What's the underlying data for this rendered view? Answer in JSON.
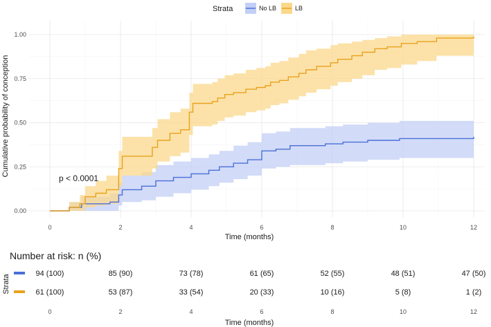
{
  "chart_data": {
    "type": "line",
    "subtype": "kaplan-meier-cumulative-incidence",
    "title": "",
    "xlabel": "Time (months)",
    "ylabel": "Cumulative probability of conception",
    "xlim": [
      0,
      12
    ],
    "ylim": [
      0,
      1
    ],
    "x_ticks": [
      0,
      2,
      4,
      6,
      8,
      10,
      12
    ],
    "y_ticks": [
      "0.00",
      "0.25",
      "0.50",
      "0.75",
      "1.00"
    ],
    "grid": true,
    "legend": {
      "title": "Strata",
      "position": "top",
      "entries": [
        "No LB",
        "LB"
      ]
    },
    "annotation": "p < 0.0001",
    "series": [
      {
        "name": "No LB",
        "color": "#4a6fd8",
        "fill": "#c3cff5",
        "steps": [
          [
            0,
            0
          ],
          [
            0.55,
            0.02
          ],
          [
            0.9,
            0.04
          ],
          [
            1.7,
            0.05
          ],
          [
            1.95,
            0.09
          ],
          [
            2.05,
            0.12
          ],
          [
            2.6,
            0.14
          ],
          [
            3.0,
            0.17
          ],
          [
            3.5,
            0.19
          ],
          [
            4.0,
            0.21
          ],
          [
            4.5,
            0.23
          ],
          [
            4.8,
            0.25
          ],
          [
            5.2,
            0.27
          ],
          [
            5.6,
            0.29
          ],
          [
            6.0,
            0.34
          ],
          [
            6.4,
            0.35
          ],
          [
            6.8,
            0.37
          ],
          [
            7.8,
            0.38
          ],
          [
            8.3,
            0.39
          ],
          [
            9.0,
            0.4
          ],
          [
            9.9,
            0.41
          ],
          [
            12.0,
            0.42
          ]
        ],
        "lower": [
          [
            0,
            0
          ],
          [
            0.55,
            0.0
          ],
          [
            0.9,
            0.0
          ],
          [
            1.7,
            0.0
          ],
          [
            1.95,
            0.03
          ],
          [
            2.05,
            0.05
          ],
          [
            2.6,
            0.06
          ],
          [
            3.0,
            0.08
          ],
          [
            3.5,
            0.1
          ],
          [
            4.0,
            0.12
          ],
          [
            4.5,
            0.14
          ],
          [
            4.8,
            0.16
          ],
          [
            5.2,
            0.18
          ],
          [
            5.6,
            0.2
          ],
          [
            6.0,
            0.24
          ],
          [
            6.4,
            0.25
          ],
          [
            6.8,
            0.26
          ],
          [
            7.8,
            0.27
          ],
          [
            8.3,
            0.28
          ],
          [
            9.0,
            0.29
          ],
          [
            9.9,
            0.3
          ],
          [
            12.0,
            0.31
          ]
        ],
        "upper": [
          [
            0,
            0
          ],
          [
            0.55,
            0.05
          ],
          [
            0.9,
            0.08
          ],
          [
            1.7,
            0.1
          ],
          [
            1.95,
            0.16
          ],
          [
            2.05,
            0.2
          ],
          [
            2.6,
            0.22
          ],
          [
            3.0,
            0.26
          ],
          [
            3.5,
            0.28
          ],
          [
            4.0,
            0.3
          ],
          [
            4.5,
            0.32
          ],
          [
            4.8,
            0.34
          ],
          [
            5.2,
            0.37
          ],
          [
            5.6,
            0.39
          ],
          [
            6.0,
            0.44
          ],
          [
            6.4,
            0.45
          ],
          [
            6.8,
            0.47
          ],
          [
            7.8,
            0.48
          ],
          [
            8.3,
            0.49
          ],
          [
            9.0,
            0.5
          ],
          [
            9.9,
            0.51
          ],
          [
            12.0,
            0.52
          ]
        ]
      },
      {
        "name": "LB",
        "color": "#e8a21c",
        "fill": "#fbd88c",
        "steps": [
          [
            0,
            0
          ],
          [
            0.55,
            0.02
          ],
          [
            0.85,
            0.04
          ],
          [
            1.0,
            0.08
          ],
          [
            1.3,
            0.1
          ],
          [
            1.6,
            0.12
          ],
          [
            1.95,
            0.24
          ],
          [
            2.05,
            0.31
          ],
          [
            2.9,
            0.36
          ],
          [
            3.05,
            0.4
          ],
          [
            3.4,
            0.44
          ],
          [
            3.7,
            0.46
          ],
          [
            3.95,
            0.56
          ],
          [
            4.05,
            0.61
          ],
          [
            4.6,
            0.62
          ],
          [
            4.75,
            0.64
          ],
          [
            4.95,
            0.66
          ],
          [
            5.2,
            0.67
          ],
          [
            5.55,
            0.69
          ],
          [
            5.85,
            0.7
          ],
          [
            6.1,
            0.71
          ],
          [
            6.25,
            0.73
          ],
          [
            6.5,
            0.74
          ],
          [
            6.75,
            0.76
          ],
          [
            7.05,
            0.78
          ],
          [
            7.25,
            0.8
          ],
          [
            7.55,
            0.82
          ],
          [
            7.95,
            0.84
          ],
          [
            8.15,
            0.86
          ],
          [
            8.55,
            0.88
          ],
          [
            8.85,
            0.9
          ],
          [
            9.2,
            0.92
          ],
          [
            9.55,
            0.93
          ],
          [
            9.95,
            0.95
          ],
          [
            10.4,
            0.96
          ],
          [
            10.95,
            0.98
          ],
          [
            12.0,
            0.99
          ]
        ],
        "lower": [
          [
            0,
            0
          ],
          [
            0.55,
            0.0
          ],
          [
            0.85,
            0.0
          ],
          [
            1.0,
            0.02
          ],
          [
            1.3,
            0.03
          ],
          [
            1.6,
            0.04
          ],
          [
            1.95,
            0.14
          ],
          [
            2.05,
            0.2
          ],
          [
            2.9,
            0.24
          ],
          [
            3.05,
            0.28
          ],
          [
            3.4,
            0.31
          ],
          [
            3.7,
            0.33
          ],
          [
            3.95,
            0.43
          ],
          [
            4.05,
            0.48
          ],
          [
            4.6,
            0.49
          ],
          [
            4.75,
            0.51
          ],
          [
            4.95,
            0.53
          ],
          [
            5.2,
            0.54
          ],
          [
            5.55,
            0.56
          ],
          [
            5.85,
            0.57
          ],
          [
            6.1,
            0.58
          ],
          [
            6.25,
            0.6
          ],
          [
            6.5,
            0.61
          ],
          [
            6.75,
            0.63
          ],
          [
            7.05,
            0.65
          ],
          [
            7.25,
            0.67
          ],
          [
            7.55,
            0.69
          ],
          [
            7.95,
            0.71
          ],
          [
            8.15,
            0.73
          ],
          [
            8.55,
            0.75
          ],
          [
            8.85,
            0.77
          ],
          [
            9.2,
            0.8
          ],
          [
            9.55,
            0.81
          ],
          [
            9.95,
            0.83
          ],
          [
            10.4,
            0.85
          ],
          [
            10.95,
            0.88
          ],
          [
            12.0,
            0.89
          ]
        ],
        "upper": [
          [
            0,
            0
          ],
          [
            0.55,
            0.05
          ],
          [
            0.85,
            0.09
          ],
          [
            1.0,
            0.14
          ],
          [
            1.3,
            0.17
          ],
          [
            1.6,
            0.2
          ],
          [
            1.95,
            0.34
          ],
          [
            2.05,
            0.42
          ],
          [
            2.9,
            0.47
          ],
          [
            3.05,
            0.52
          ],
          [
            3.4,
            0.56
          ],
          [
            3.7,
            0.58
          ],
          [
            3.95,
            0.67
          ],
          [
            4.05,
            0.72
          ],
          [
            4.6,
            0.73
          ],
          [
            4.75,
            0.75
          ],
          [
            4.95,
            0.77
          ],
          [
            5.2,
            0.78
          ],
          [
            5.55,
            0.8
          ],
          [
            5.85,
            0.81
          ],
          [
            6.1,
            0.82
          ],
          [
            6.25,
            0.84
          ],
          [
            6.5,
            0.85
          ],
          [
            6.75,
            0.87
          ],
          [
            7.05,
            0.89
          ],
          [
            7.25,
            0.91
          ],
          [
            7.55,
            0.92
          ],
          [
            7.95,
            0.94
          ],
          [
            8.15,
            0.95
          ],
          [
            8.55,
            0.96
          ],
          [
            8.85,
            0.97
          ],
          [
            9.2,
            0.98
          ],
          [
            9.55,
            0.99
          ],
          [
            9.95,
            1.0
          ],
          [
            10.4,
            1.0
          ],
          [
            10.95,
            1.0
          ],
          [
            12.0,
            1.0
          ]
        ]
      }
    ],
    "risk_table": {
      "title": "Number at risk: n (%)",
      "ylabel": "Strata",
      "xlabel": "Time (months)",
      "x_ticks": [
        0,
        2,
        4,
        6,
        8,
        10,
        12
      ],
      "rows": [
        {
          "name": "No LB",
          "color": "#4a6fd8",
          "values": [
            "94 (100)",
            "85 (90)",
            "73 (78)",
            "61 (65)",
            "52 (55)",
            "48 (51)",
            "47 (50)"
          ]
        },
        {
          "name": "LB",
          "color": "#e8a21c",
          "values": [
            "61 (100)",
            "53 (87)",
            "33 (54)",
            "20 (33)",
            "10 (16)",
            "5 (8)",
            "1 (2)"
          ]
        }
      ]
    }
  }
}
